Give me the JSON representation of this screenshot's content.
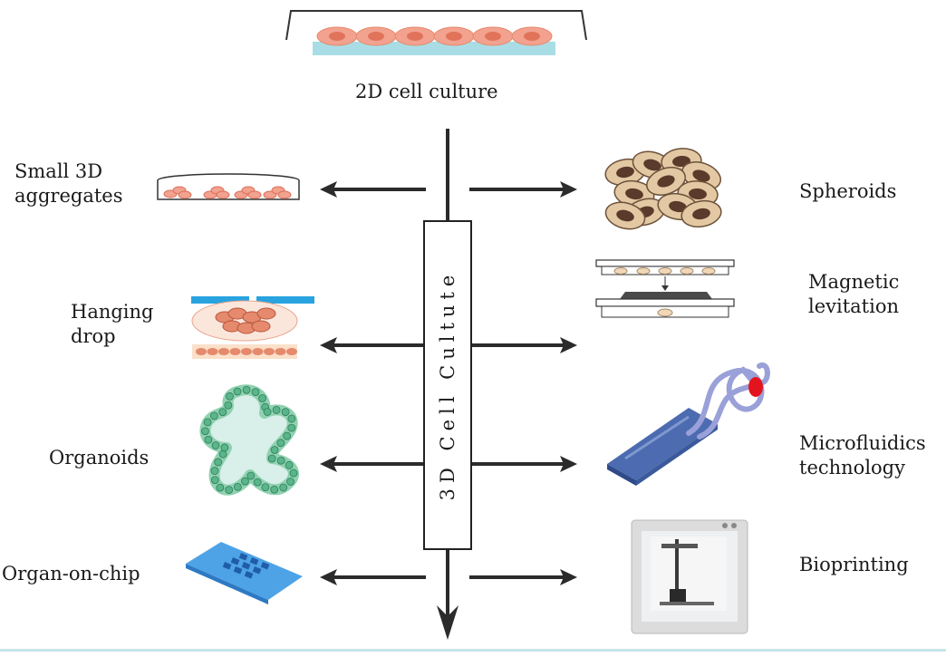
{
  "top_label": "2D cell culture",
  "center_label": "3D Cell Cultute",
  "left_items": [
    {
      "label_lines": [
        "Small 3D",
        "aggregates"
      ]
    },
    {
      "label_lines": [
        "Hanging",
        "drop"
      ]
    },
    {
      "label_lines": [
        "Organoids"
      ]
    },
    {
      "label_lines": [
        "Organ-on-chip"
      ]
    }
  ],
  "right_items": [
    {
      "label_lines": [
        "Spheroids"
      ]
    },
    {
      "label_lines": [
        "Magnetic",
        "levitation"
      ]
    },
    {
      "label_lines": [
        "Microfluidics",
        "technology"
      ]
    },
    {
      "label_lines": [
        "Bioprinting"
      ]
    }
  ],
  "colors": {
    "arrow": "#2b2b2b",
    "cell_fill": "#f2a28f",
    "cell_nucleus": "#e0735a",
    "medium_blue": "#a9dde6",
    "chip_blue": "#3e8fd8",
    "spheroid_cell": "#e2c9a4",
    "spheroid_nucleus": "#5a3a2a",
    "organoid": "#8fd1b0",
    "microfluidic": "#4c6bb0",
    "tube": "#9aa0d8",
    "red_drop": "#e4141e"
  }
}
